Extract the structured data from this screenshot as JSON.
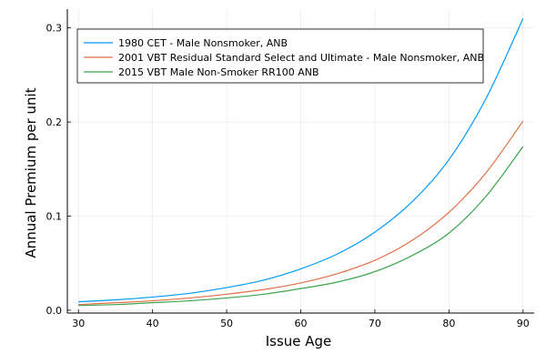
{
  "chart_data": {
    "type": "line",
    "title": "",
    "xlabel": "Issue Age",
    "ylabel": "Annual Premium per unit",
    "xlim": [
      28.5,
      91.5
    ],
    "ylim": [
      -0.003,
      0.32
    ],
    "xticks": [
      30,
      40,
      50,
      60,
      70,
      80,
      90
    ],
    "yticks": [
      0.0,
      0.1,
      0.2,
      0.3
    ],
    "ytick_labels": [
      "0.0",
      "0.1",
      "0.2",
      "0.3"
    ],
    "grid": true,
    "legend_position": "top-left",
    "x": [
      30,
      35,
      40,
      45,
      50,
      55,
      60,
      65,
      70,
      75,
      80,
      85,
      90
    ],
    "series": [
      {
        "name": "1980 CET - Male Nonsmoker, ANB",
        "color": "#009AFA",
        "values": [
          0.009,
          0.011,
          0.014,
          0.018,
          0.024,
          0.032,
          0.044,
          0.06,
          0.083,
          0.115,
          0.16,
          0.225,
          0.31
        ]
      },
      {
        "name": "2001 VBT Residual Standard Select and Ultimate - Male Nonsmoker, ANB",
        "color": "#E36F47",
        "values": [
          0.006,
          0.008,
          0.01,
          0.013,
          0.017,
          0.022,
          0.029,
          0.039,
          0.053,
          0.074,
          0.104,
          0.146,
          0.201
        ]
      },
      {
        "name": "2015 VBT Male Non-Smoker RR100 ANB",
        "color": "#3EA44E",
        "values": [
          0.005,
          0.006,
          0.008,
          0.01,
          0.013,
          0.017,
          0.023,
          0.03,
          0.041,
          0.058,
          0.082,
          0.121,
          0.174
        ]
      }
    ]
  }
}
